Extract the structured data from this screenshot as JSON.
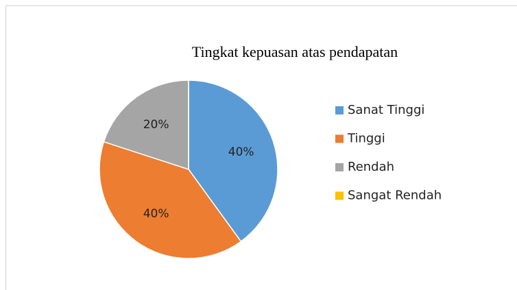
{
  "chart_data": {
    "type": "pie",
    "title": "Tingkat kepuasan atas pendapatan",
    "categories": [
      "Sanat Tinggi",
      "Tinggi",
      "Rendah",
      "Sangat Rendah"
    ],
    "values": [
      40,
      40,
      20,
      0
    ],
    "value_labels": [
      "40%",
      "40%",
      "20%",
      null
    ],
    "colors": [
      "#5b9bd5",
      "#ed7d31",
      "#a5a5a5",
      "#ffc000"
    ],
    "legend": "right"
  }
}
